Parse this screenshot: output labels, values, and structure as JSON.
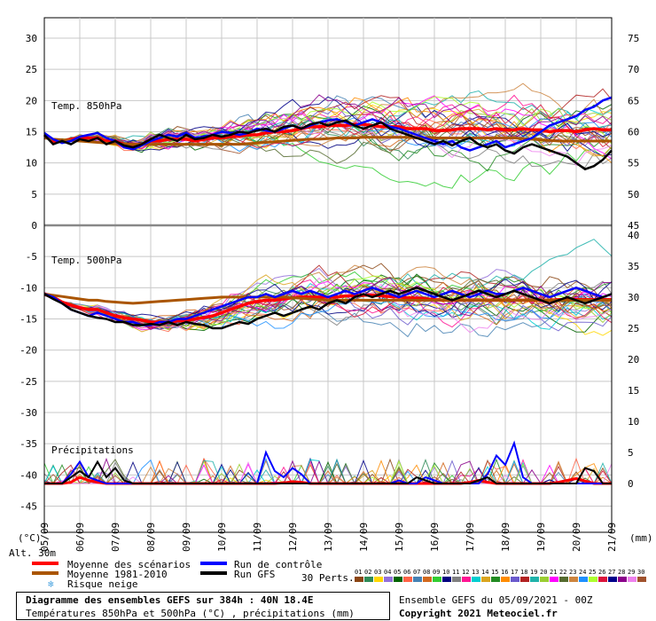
{
  "chart_data": {
    "type": "line",
    "x_axis": {
      "labels": [
        "05/09",
        "06/09",
        "07/09",
        "08/09",
        "09/09",
        "10/09",
        "11/09",
        "12/09",
        "13/09",
        "14/09",
        "15/09",
        "16/09",
        "17/09",
        "18/09",
        "19/09",
        "20/09",
        "21/09"
      ],
      "left_unit": "(°C)",
      "right_unit": "(mm)"
    },
    "left_axis": {
      "ticks": [
        "30",
        "25",
        "20",
        "15",
        "10",
        "5",
        "0",
        "-5",
        "-10",
        "-15",
        "-20",
        "-25",
        "-30",
        "-35",
        "-40",
        "-45"
      ],
      "range": [
        -45,
        30
      ]
    },
    "right_axis": {
      "ticks_850": [
        "75",
        "70",
        "65",
        "60",
        "55",
        "50",
        "45"
      ],
      "ticks_500": [
        "40",
        "35",
        "30",
        "25",
        "20",
        "15",
        "10",
        "5",
        "0"
      ]
    },
    "panel_labels": {
      "t850": "Temp. 850hPa",
      "t500": "Temp. 500hPa",
      "precip": "Précipitations"
    },
    "alt_label": "Alt. 30m",
    "series": [
      {
        "name": "Moyenne des scénarios",
        "color": "#ff0000",
        "t850": [
          14.5,
          13.5,
          13.5,
          13.8,
          14.0,
          14.0,
          14.0,
          13.5,
          13.5,
          13.0,
          13.0,
          13.0,
          13.5,
          13.5,
          13.8,
          13.8,
          13.8,
          13.5,
          13.8,
          14.0,
          14.0,
          14.2,
          14.3,
          14.5,
          14.5,
          14.8,
          15.0,
          15.0,
          15.2,
          15.5,
          15.8,
          15.8,
          16.0,
          16.0,
          16.0,
          16.2,
          16.2,
          16.0,
          15.8,
          15.8,
          15.8,
          15.5,
          15.5,
          15.5,
          15.2,
          15.2,
          15.3,
          15.5,
          15.5,
          15.5,
          15.3,
          15.5,
          15.3,
          15.3,
          15.5,
          15.3,
          15.3,
          15.0,
          15.2,
          15.2,
          15.0,
          15.3,
          15.5,
          15.3,
          15.3
        ],
        "t500": [
          -11.0,
          -11.5,
          -12.3,
          -12.8,
          -13.2,
          -13.5,
          -13.5,
          -14.0,
          -14.5,
          -14.8,
          -15.0,
          -15.2,
          -15.5,
          -15.5,
          -15.5,
          -15.3,
          -15.3,
          -15.0,
          -14.8,
          -14.5,
          -14.0,
          -13.5,
          -13.0,
          -12.5,
          -12.2,
          -12.0,
          -12.0,
          -11.8,
          -11.6,
          -11.5,
          -11.5,
          -11.5,
          -11.5,
          -11.5,
          -11.3,
          -11.3,
          -11.2,
          -11.2,
          -11.3,
          -11.4,
          -11.5,
          -11.6,
          -11.7,
          -11.8,
          -11.9,
          -12.0,
          -12.0,
          -12.0,
          -12.0,
          -12.0,
          -12.0,
          -12.0,
          -12.0,
          -12.0,
          -12.0,
          -12.0,
          -12.0,
          -12.0,
          -11.9,
          -11.9,
          -11.9,
          -11.9,
          -11.9,
          -11.9,
          -11.9
        ],
        "precip": [
          0,
          0,
          0,
          0.2,
          1.0,
          0.5,
          0.2,
          0,
          0,
          0,
          0,
          0,
          0,
          0,
          0,
          0,
          0,
          0,
          0,
          0,
          0,
          0,
          0,
          0,
          0,
          0,
          0,
          0.1,
          0.3,
          0.2,
          0,
          0,
          0,
          0,
          0,
          0,
          0,
          0,
          0,
          0,
          0,
          0,
          0,
          0,
          0,
          0,
          0,
          0,
          0.2,
          0.5,
          0.2,
          0,
          0,
          0,
          0,
          0,
          0,
          0,
          0.2,
          0.5,
          0.8,
          0.4,
          0,
          0,
          0
        ]
      },
      {
        "name": "Moyenne 1981-2010",
        "color": "#aa5500",
        "t850": [
          14.0,
          13.8,
          13.7,
          13.6,
          13.5,
          13.4,
          13.3,
          13.2,
          13.1,
          13.0,
          13.0,
          13.0,
          13.0,
          13.0,
          13.0,
          13.0,
          13.0,
          13.0,
          13.0,
          13.0,
          13.0,
          13.0,
          13.0,
          13.1,
          13.2,
          13.3,
          13.4,
          13.5,
          13.6,
          13.7,
          13.8,
          13.8,
          13.9,
          14.0,
          14.0,
          14.0,
          14.1,
          14.1,
          14.1,
          14.1,
          14.1,
          14.1,
          14.0,
          14.0,
          14.0,
          14.0,
          14.0,
          14.0,
          14.0,
          14.0,
          14.0,
          14.0,
          14.0,
          14.0,
          13.9,
          13.8,
          13.7,
          13.6,
          13.5,
          13.5,
          13.5,
          13.5,
          13.5,
          13.5,
          13.5
        ],
        "t500": [
          -11.0,
          -11.2,
          -11.4,
          -11.6,
          -11.8,
          -12.0,
          -12.0,
          -12.2,
          -12.3,
          -12.4,
          -12.5,
          -12.4,
          -12.3,
          -12.2,
          -12.1,
          -12.0,
          -11.9,
          -11.8,
          -11.7,
          -11.6,
          -11.5,
          -11.5,
          -11.5,
          -11.5,
          -11.5,
          -11.5,
          -11.5,
          -11.5,
          -11.6,
          -11.7,
          -11.8,
          -11.9,
          -12.0,
          -12.0,
          -12.0,
          -12.0,
          -12.0,
          -12.0,
          -12.0,
          -12.0,
          -12.0,
          -12.0,
          -12.0,
          -12.0,
          -12.0,
          -12.0,
          -12.0,
          -12.0,
          -12.0,
          -12.0,
          -12.0,
          -12.0,
          -12.0,
          -12.0,
          -12.0,
          -12.0,
          -12.0,
          -12.0,
          -12.0,
          -12.0,
          -12.0,
          -12.0,
          -12.0,
          -12.0,
          -12.0
        ],
        "precip": []
      },
      {
        "name": "Run de contrôle",
        "color": "#0000ff",
        "t850": [
          14.8,
          13.8,
          13.2,
          13.5,
          14.2,
          14.5,
          14.8,
          14.0,
          13.5,
          12.5,
          12.2,
          12.8,
          13.5,
          14.0,
          14.5,
          14.2,
          14.8,
          14.0,
          14.2,
          14.5,
          15.0,
          14.8,
          14.5,
          14.8,
          15.5,
          15.2,
          15.0,
          15.5,
          16.0,
          15.5,
          16.0,
          16.5,
          16.8,
          17.0,
          16.5,
          16.0,
          16.5,
          17.0,
          16.5,
          15.8,
          15.5,
          15.0,
          14.5,
          14.0,
          13.5,
          13.0,
          13.5,
          12.5,
          12.0,
          12.5,
          13.0,
          13.5,
          12.5,
          13.0,
          13.5,
          14.0,
          15.0,
          16.0,
          16.5,
          17.0,
          17.5,
          18.5,
          19.0,
          20.0,
          20.5
        ],
        "t500": [
          -11.0,
          -11.5,
          -12.5,
          -13.5,
          -14.0,
          -14.5,
          -14.0,
          -14.5,
          -15.0,
          -15.5,
          -15.5,
          -16.0,
          -16.0,
          -15.5,
          -15.5,
          -15.0,
          -15.0,
          -14.5,
          -14.0,
          -13.5,
          -13.0,
          -12.5,
          -12.0,
          -11.5,
          -11.5,
          -11.0,
          -11.5,
          -11.0,
          -10.5,
          -11.0,
          -10.5,
          -11.0,
          -11.5,
          -11.0,
          -10.5,
          -11.0,
          -10.5,
          -10.0,
          -10.5,
          -11.0,
          -11.5,
          -11.0,
          -10.5,
          -11.0,
          -11.5,
          -11.0,
          -10.5,
          -11.0,
          -11.5,
          -11.0,
          -10.5,
          -11.0,
          -11.0,
          -10.5,
          -10.0,
          -10.5,
          -11.0,
          -11.5,
          -11.0,
          -10.5,
          -10.0,
          -10.5,
          -11.0,
          -11.5,
          -11.0
        ],
        "precip": [
          0,
          0,
          0,
          1.5,
          3.5,
          1.0,
          0.5,
          0,
          0,
          0,
          0,
          0,
          0,
          0,
          0,
          0,
          0,
          0,
          0,
          0,
          0,
          0,
          0,
          0,
          0,
          5.0,
          2.0,
          1.0,
          2.5,
          1.5,
          0,
          0,
          0,
          0,
          0,
          0,
          0,
          0,
          0,
          0,
          0.5,
          0,
          0,
          1.0,
          0.5,
          0,
          0,
          0,
          0,
          0,
          1.5,
          4.5,
          3.0,
          6.5,
          1.0,
          0,
          0,
          0,
          0,
          0,
          0,
          0,
          0,
          0,
          0
        ]
      },
      {
        "name": "Run GFS",
        "color": "#000000",
        "t850": [
          14.5,
          13.0,
          13.5,
          13.0,
          13.8,
          13.5,
          14.0,
          13.0,
          13.5,
          12.8,
          12.5,
          13.0,
          13.8,
          14.5,
          14.0,
          13.5,
          14.5,
          13.8,
          14.0,
          14.5,
          14.2,
          14.5,
          15.0,
          14.8,
          15.2,
          15.5,
          15.0,
          15.8,
          16.0,
          15.5,
          16.2,
          16.5,
          16.0,
          16.5,
          16.8,
          16.0,
          15.5,
          16.0,
          16.5,
          15.5,
          15.0,
          14.5,
          14.0,
          13.5,
          13.0,
          13.5,
          12.8,
          13.5,
          14.0,
          13.0,
          12.5,
          13.0,
          12.0,
          11.5,
          12.5,
          13.0,
          12.5,
          12.0,
          11.5,
          11.0,
          10.0,
          9.0,
          9.5,
          10.5,
          12.0
        ],
        "t500": [
          -11.0,
          -11.8,
          -12.5,
          -13.5,
          -14.0,
          -14.5,
          -14.8,
          -15.0,
          -15.5,
          -15.5,
          -16.0,
          -16.0,
          -15.8,
          -16.0,
          -15.5,
          -16.0,
          -15.5,
          -15.8,
          -16.0,
          -16.5,
          -16.5,
          -16.0,
          -15.5,
          -15.8,
          -15.0,
          -14.5,
          -14.0,
          -14.5,
          -14.0,
          -13.5,
          -13.0,
          -13.5,
          -12.5,
          -12.0,
          -12.5,
          -11.5,
          -11.0,
          -11.5,
          -11.0,
          -10.5,
          -11.0,
          -10.5,
          -10.0,
          -10.5,
          -11.0,
          -11.5,
          -12.0,
          -11.5,
          -11.0,
          -10.5,
          -11.0,
          -11.5,
          -11.0,
          -10.5,
          -11.0,
          -11.5,
          -12.0,
          -12.5,
          -12.0,
          -11.5,
          -12.0,
          -12.5,
          -12.0,
          -11.5,
          -11.0
        ],
        "precip": [
          0,
          0,
          0,
          1.0,
          2.0,
          1.0,
          3.5,
          1.0,
          2.5,
          0.5,
          0,
          0,
          0,
          0,
          0,
          0,
          0,
          0,
          0,
          0,
          0,
          0,
          0,
          0,
          0,
          0,
          0,
          0,
          0,
          0,
          0,
          0,
          0,
          0,
          0,
          0,
          0,
          0,
          0,
          0,
          0,
          0,
          1.0,
          0.5,
          0,
          0,
          0,
          0,
          0,
          0.5,
          1.0,
          0,
          0,
          0,
          0,
          0,
          0,
          0,
          0,
          0,
          0,
          2.5,
          2.0,
          0,
          0
        ]
      }
    ],
    "perturbations": {
      "label": "30 Perts.",
      "ids": [
        "01",
        "02",
        "03",
        "04",
        "05",
        "06",
        "07",
        "08",
        "09",
        "10",
        "11",
        "12",
        "13",
        "14",
        "15",
        "16",
        "17",
        "18",
        "19",
        "20",
        "21",
        "22",
        "23",
        "24",
        "25",
        "26",
        "27",
        "28",
        "29",
        "30"
      ],
      "colors": [
        "#8b4513",
        "#2e8b57",
        "#ffd700",
        "#9370db",
        "#006400",
        "#ff6347",
        "#4682b4",
        "#d2691e",
        "#32cd32",
        "#000080",
        "#808080",
        "#ff1493",
        "#00ced1",
        "#daa520",
        "#228b22",
        "#ff8c00",
        "#6a5acd",
        "#b22222",
        "#20b2aa",
        "#9acd32",
        "#ff00ff",
        "#556b2f",
        "#cd853f",
        "#1e90ff",
        "#adff2f",
        "#dc143c",
        "#00008b",
        "#8b008b",
        "#ee82ee",
        "#a0522d"
      ]
    },
    "snow_risk_label": "Risque neige"
  },
  "footer": {
    "title": "Diagramme des ensembles GEFS sur 384h : 40N 18.4E",
    "subtitle": "Températures 850hPa et 500hPa (°C) , précipitations (mm)",
    "ensemble_info": "Ensemble GEFS du 05/09/2021 - 00Z",
    "copyright": "Copyright 2021 Meteociel.fr"
  }
}
